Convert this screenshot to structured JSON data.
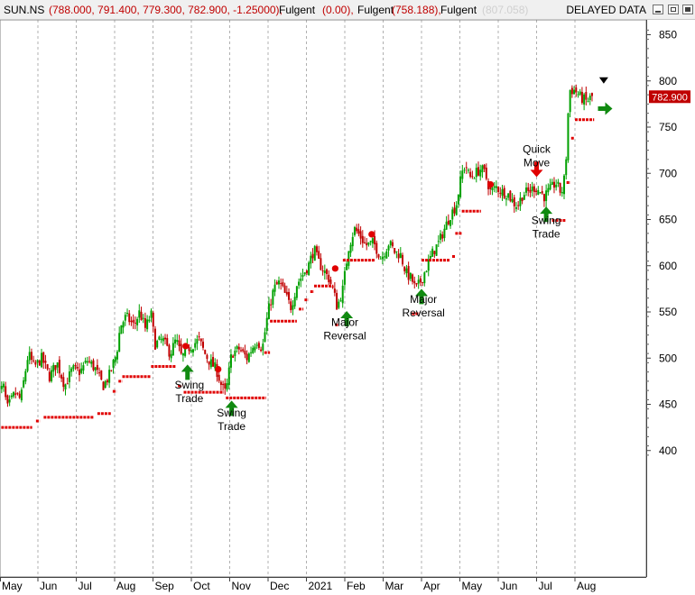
{
  "header": {
    "symbol": "SUN.NS",
    "ohlc": "(788.000, 791.400, 779.300, 782.900, -1.25000),",
    "ind1_name": "Fulgent",
    "ind1_value": "(0.00),",
    "ind2_name": "Fulgent",
    "ind2_value": "(758.188),",
    "ind3_name": "Fulgent",
    "ind3_value": "(807.058)",
    "delayed": "DELAYED DATA"
  },
  "colors": {
    "up_candle": "#00a000",
    "down_candle": "#c00000",
    "stop_line": "#e00000",
    "buy_arrow": "#108a10",
    "sell_arrow": "#e00000",
    "grid": "#b0b0b0",
    "last_price_bg": "#c00000"
  },
  "chart_data": {
    "type": "candlestick",
    "title": "",
    "ylim": [
      385,
      870
    ],
    "y_ticks": [
      400,
      450,
      500,
      550,
      600,
      650,
      700,
      750,
      800,
      850
    ],
    "y_tick_labels": [
      "400",
      "450",
      "500",
      "550",
      "600",
      "650",
      "700",
      "750",
      "800",
      "850"
    ],
    "x_ticks": [
      {
        "label": "May",
        "t": 0.0
      },
      {
        "label": "Jun",
        "t": 1.0
      },
      {
        "label": "Jul",
        "t": 2.0
      },
      {
        "label": "Aug",
        "t": 3.0
      },
      {
        "label": "Sep",
        "t": 4.0
      },
      {
        "label": "Oct",
        "t": 5.0
      },
      {
        "label": "Nov",
        "t": 6.0
      },
      {
        "label": "Dec",
        "t": 7.0
      },
      {
        "label": "2021",
        "t": 8.0
      },
      {
        "label": "Feb",
        "t": 9.0
      },
      {
        "label": "Mar",
        "t": 10.0
      },
      {
        "label": "Apr",
        "t": 11.0
      },
      {
        "label": "May",
        "t": 12.0
      },
      {
        "label": "Jun",
        "t": 13.0
      },
      {
        "label": "Jul",
        "t": 14.0
      },
      {
        "label": "Aug",
        "t": 15.0
      }
    ],
    "last_price": 782.9,
    "last_price_label": "782.900",
    "price_path": [
      [
        -0.05,
        460
      ],
      [
        0.1,
        470
      ],
      [
        0.2,
        445
      ],
      [
        0.4,
        462
      ],
      [
        0.55,
        455
      ],
      [
        0.75,
        505
      ],
      [
        0.9,
        490
      ],
      [
        1.1,
        500
      ],
      [
        1.3,
        480
      ],
      [
        1.5,
        495
      ],
      [
        1.7,
        470
      ],
      [
        1.9,
        488
      ],
      [
        2.1,
        485
      ],
      [
        2.3,
        498
      ],
      [
        2.5,
        488
      ],
      [
        2.7,
        470
      ],
      [
        2.85,
        480
      ],
      [
        3.05,
        505
      ],
      [
        3.15,
        535
      ],
      [
        3.3,
        545
      ],
      [
        3.5,
        535
      ],
      [
        3.65,
        550
      ],
      [
        3.8,
        532
      ],
      [
        3.95,
        548
      ],
      [
        4.05,
        515
      ],
      [
        4.25,
        520
      ],
      [
        4.45,
        505
      ],
      [
        4.6,
        520
      ],
      [
        4.75,
        500
      ],
      [
        4.9,
        510
      ],
      [
        5.05,
        515
      ],
      [
        5.2,
        520
      ],
      [
        5.35,
        505
      ],
      [
        5.5,
        495
      ],
      [
        5.65,
        488
      ],
      [
        5.8,
        468
      ],
      [
        5.9,
        462
      ],
      [
        6.05,
        505
      ],
      [
        6.25,
        510
      ],
      [
        6.45,
        500
      ],
      [
        6.7,
        520
      ],
      [
        6.85,
        510
      ],
      [
        7.0,
        550
      ],
      [
        7.15,
        575
      ],
      [
        7.3,
        582
      ],
      [
        7.45,
        568
      ],
      [
        7.6,
        555
      ],
      [
        7.75,
        580
      ],
      [
        7.9,
        590
      ],
      [
        8.05,
        600
      ],
      [
        8.2,
        618
      ],
      [
        8.3,
        605
      ],
      [
        8.45,
        595
      ],
      [
        8.6,
        585
      ],
      [
        8.72,
        570
      ],
      [
        8.8,
        555
      ],
      [
        8.95,
        575
      ],
      [
        9.1,
        620
      ],
      [
        9.25,
        640
      ],
      [
        9.4,
        632
      ],
      [
        9.55,
        622
      ],
      [
        9.75,
        625
      ],
      [
        9.95,
        608
      ],
      [
        10.15,
        625
      ],
      [
        10.3,
        615
      ],
      [
        10.45,
        612
      ],
      [
        10.6,
        592
      ],
      [
        10.75,
        585
      ],
      [
        10.85,
        574
      ],
      [
        11.0,
        585
      ],
      [
        11.15,
        600
      ],
      [
        11.3,
        615
      ],
      [
        11.45,
        625
      ],
      [
        11.6,
        640
      ],
      [
        11.75,
        655
      ],
      [
        11.9,
        665
      ],
      [
        12.05,
        700
      ],
      [
        12.15,
        710
      ],
      [
        12.25,
        695
      ],
      [
        12.4,
        700
      ],
      [
        12.55,
        705
      ],
      [
        12.65,
        700
      ],
      [
        12.8,
        680
      ],
      [
        12.95,
        685
      ],
      [
        13.1,
        680
      ],
      [
        13.25,
        678
      ],
      [
        13.4,
        668
      ],
      [
        13.5,
        665
      ],
      [
        13.65,
        678
      ],
      [
        13.8,
        680
      ],
      [
        13.95,
        685
      ],
      [
        14.05,
        682
      ],
      [
        14.2,
        675
      ],
      [
        14.35,
        682
      ],
      [
        14.5,
        690
      ],
      [
        14.65,
        678
      ],
      [
        14.75,
        700
      ],
      [
        14.85,
        790
      ],
      [
        15.0,
        790
      ],
      [
        15.15,
        782
      ],
      [
        15.3,
        778
      ],
      [
        15.45,
        783
      ]
    ],
    "stop_segments": [
      {
        "t0": -0.05,
        "t1": 0.85,
        "y": 425
      },
      {
        "t0": 0.95,
        "t1": 1.05,
        "y": 432
      },
      {
        "t0": 1.15,
        "t1": 2.45,
        "y": 436
      },
      {
        "t0": 2.55,
        "t1": 2.9,
        "y": 440
      },
      {
        "t0": 2.95,
        "t1": 3.05,
        "y": 464
      },
      {
        "t0": 3.1,
        "t1": 3.2,
        "y": 475
      },
      {
        "t0": 3.2,
        "t1": 3.95,
        "y": 480
      },
      {
        "t0": 3.95,
        "t1": 4.6,
        "y": 491
      },
      {
        "t0": 4.65,
        "t1": 4.75,
        "y": 470
      },
      {
        "t0": 4.8,
        "t1": 5.85,
        "y": 463
      },
      {
        "t0": 5.9,
        "t1": 6.95,
        "y": 457
      },
      {
        "t0": 6.9,
        "t1": 7.05,
        "y": 506
      },
      {
        "t0": 7.05,
        "t1": 7.75,
        "y": 540
      },
      {
        "t0": 7.8,
        "t1": 7.92,
        "y": 553
      },
      {
        "t0": 7.95,
        "t1": 8.05,
        "y": 563
      },
      {
        "t0": 8.1,
        "t1": 8.2,
        "y": 572
      },
      {
        "t0": 8.2,
        "t1": 8.7,
        "y": 578
      },
      {
        "t0": 8.75,
        "t1": 8.85,
        "y": 536
      },
      {
        "t0": 8.95,
        "t1": 9.8,
        "y": 606
      },
      {
        "t0": 10.75,
        "t1": 10.95,
        "y": 548
      },
      {
        "t0": 11.0,
        "t1": 11.75,
        "y": 606
      },
      {
        "t0": 11.8,
        "t1": 11.88,
        "y": 610
      },
      {
        "t0": 11.88,
        "t1": 12.05,
        "y": 635
      },
      {
        "t0": 12.05,
        "t1": 12.55,
        "y": 659
      },
      {
        "t0": 14.4,
        "t1": 14.75,
        "y": 649
      },
      {
        "t0": 14.78,
        "t1": 14.88,
        "y": 690
      },
      {
        "t0": 14.9,
        "t1": 14.98,
        "y": 738
      },
      {
        "t0": 15.0,
        "t1": 15.5,
        "y": 758
      }
    ],
    "dots": [
      {
        "t": 4.85,
        "y": 513
      },
      {
        "t": 5.7,
        "y": 488
      },
      {
        "t": 8.75,
        "y": 597
      },
      {
        "t": 9.7,
        "y": 634
      },
      {
        "t": 12.8,
        "y": 688
      }
    ],
    "buy_arrows": [
      {
        "t": 4.9,
        "y": 493
      },
      {
        "t": 6.05,
        "y": 454
      },
      {
        "t": 9.05,
        "y": 551
      },
      {
        "t": 11.0,
        "y": 575
      },
      {
        "t": 14.25,
        "y": 664
      }
    ],
    "sell_arrows": [
      {
        "t": 14.0,
        "y": 696
      }
    ],
    "right_arrow": {
      "t": 15.6,
      "y": 770
    },
    "down_marker": {
      "t": 15.75,
      "y": 800
    },
    "annotations": [
      {
        "lines": [
          "Swing",
          "Trade"
        ],
        "t": 4.95,
        "y": 467
      },
      {
        "lines": [
          "Swing",
          "Trade"
        ],
        "t": 6.05,
        "y": 437
      },
      {
        "lines": [
          "Major",
          "Reversal"
        ],
        "t": 9.0,
        "y": 535
      },
      {
        "lines": [
          "Major",
          "Reversal"
        ],
        "t": 11.05,
        "y": 560
      },
      {
        "lines": [
          "Quick",
          "Move"
        ],
        "t": 14.0,
        "y": 722
      },
      {
        "lines": [
          "Swing",
          "Trade"
        ],
        "t": 14.25,
        "y": 645
      }
    ]
  }
}
